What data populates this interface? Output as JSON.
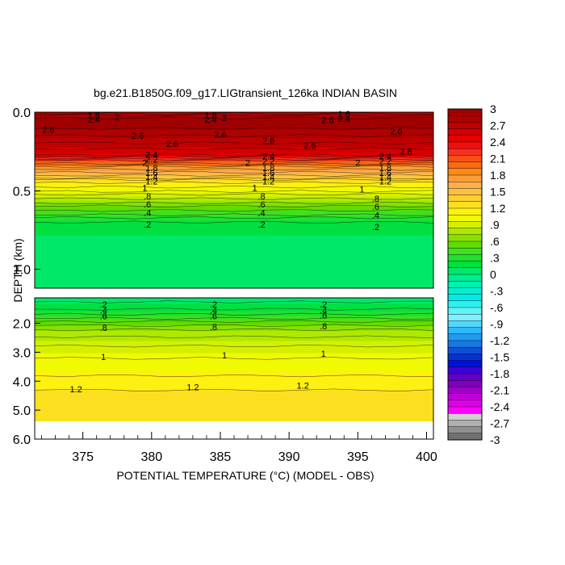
{
  "chart_data": {
    "type": "heatmap",
    "title": "bg.e21.B1850G.f09_g17.LIGtransient_126ka INDIAN BASIN",
    "xlabel": "POTENTIAL TEMPERATURE (°C) (MODEL - OBS)",
    "ylabel": "DEPTH (km)",
    "x_ticks": [
      "375",
      "380",
      "385",
      "390",
      "395",
      "400"
    ],
    "xlim": [
      371.5,
      400.5
    ],
    "upper_panel": {
      "ylim": [
        0.0,
        1.12
      ],
      "y_ticks": [
        "0.0",
        "0.5",
        "1.0"
      ],
      "profile": [
        {
          "depth": 0.0,
          "value": 2.6
        },
        {
          "depth": 0.02,
          "value": 2.8
        },
        {
          "depth": 0.05,
          "value": 3.0
        },
        {
          "depth": 0.1,
          "value": 2.9
        },
        {
          "depth": 0.2,
          "value": 2.7
        },
        {
          "depth": 0.27,
          "value": 2.5
        },
        {
          "depth": 0.3,
          "value": 2.2
        },
        {
          "depth": 0.35,
          "value": 1.8
        },
        {
          "depth": 0.4,
          "value": 1.5
        },
        {
          "depth": 0.45,
          "value": 1.2
        },
        {
          "depth": 0.5,
          "value": 1.0
        },
        {
          "depth": 0.55,
          "value": 0.8
        },
        {
          "depth": 0.6,
          "value": 0.6
        },
        {
          "depth": 0.65,
          "value": 0.4
        },
        {
          "depth": 0.7,
          "value": 0.2
        },
        {
          "depth": 0.8,
          "value": 0.1
        },
        {
          "depth": 1.12,
          "value": 0.1
        }
      ],
      "contour_labels": [
        {
          "text": "1.8",
          "x": 375.8,
          "depth": 0.02
        },
        {
          "text": "2.4",
          "x": 375.8,
          "depth": 0.045
        },
        {
          "text": "2",
          "x": 377.5,
          "depth": 0.03
        },
        {
          "text": "1.8",
          "x": 384.3,
          "depth": 0.02
        },
        {
          "text": "2.4",
          "x": 384.3,
          "depth": 0.045
        },
        {
          "text": "2",
          "x": 385.3,
          "depth": 0.035
        },
        {
          "text": "1.6",
          "x": 394.0,
          "depth": 0.01
        },
        {
          "text": "2.4",
          "x": 394.0,
          "depth": 0.04
        },
        {
          "text": "2.6",
          "x": 392.8,
          "depth": 0.05
        },
        {
          "text": "2.6",
          "x": 372.5,
          "depth": 0.11
        },
        {
          "text": "2.6",
          "x": 379.0,
          "depth": 0.15
        },
        {
          "text": "2.6",
          "x": 381.5,
          "depth": 0.2
        },
        {
          "text": "2.6",
          "x": 385.0,
          "depth": 0.14
        },
        {
          "text": "2.6",
          "x": 388.5,
          "depth": 0.18
        },
        {
          "text": "2.6",
          "x": 391.5,
          "depth": 0.21
        },
        {
          "text": "2.6",
          "x": 397.8,
          "depth": 0.12
        },
        {
          "text": "2.6",
          "x": 398.5,
          "depth": 0.25
        },
        {
          "text": "2.4",
          "x": 380.0,
          "depth": 0.27
        },
        {
          "text": "2.2",
          "x": 380.0,
          "depth": 0.3
        },
        {
          "text": "2",
          "x": 379.5,
          "depth": 0.32
        },
        {
          "text": "1.8",
          "x": 380.0,
          "depth": 0.355
        },
        {
          "text": "1.6",
          "x": 380.0,
          "depth": 0.385
        },
        {
          "text": "1.4",
          "x": 380.0,
          "depth": 0.41
        },
        {
          "text": "1.2",
          "x": 380.0,
          "depth": 0.44
        },
        {
          "text": "2.4",
          "x": 388.5,
          "depth": 0.28
        },
        {
          "text": "2.2",
          "x": 388.5,
          "depth": 0.31
        },
        {
          "text": "2",
          "x": 387.0,
          "depth": 0.32
        },
        {
          "text": "1.8",
          "x": 388.5,
          "depth": 0.355
        },
        {
          "text": "1.6",
          "x": 388.5,
          "depth": 0.385
        },
        {
          "text": "1.4",
          "x": 388.5,
          "depth": 0.41
        },
        {
          "text": "1.2",
          "x": 388.5,
          "depth": 0.44
        },
        {
          "text": "2.4",
          "x": 397.0,
          "depth": 0.28
        },
        {
          "text": "2.2",
          "x": 397.0,
          "depth": 0.31
        },
        {
          "text": "2",
          "x": 395.0,
          "depth": 0.32
        },
        {
          "text": "1.8",
          "x": 397.0,
          "depth": 0.355
        },
        {
          "text": "1.6",
          "x": 397.0,
          "depth": 0.385
        },
        {
          "text": "1.4",
          "x": 397.0,
          "depth": 0.41
        },
        {
          "text": "1.2",
          "x": 397.0,
          "depth": 0.44
        },
        {
          "text": "1",
          "x": 379.5,
          "depth": 0.48
        },
        {
          "text": "1",
          "x": 387.5,
          "depth": 0.48
        },
        {
          "text": "1",
          "x": 395.3,
          "depth": 0.49
        },
        {
          "text": ".8",
          "x": 379.7,
          "depth": 0.535
        },
        {
          "text": ".6",
          "x": 379.7,
          "depth": 0.585
        },
        {
          "text": ".4",
          "x": 379.7,
          "depth": 0.64
        },
        {
          "text": ".2",
          "x": 379.7,
          "depth": 0.715
        },
        {
          "text": ".8",
          "x": 388.0,
          "depth": 0.535
        },
        {
          "text": ".6",
          "x": 388.0,
          "depth": 0.585
        },
        {
          "text": ".4",
          "x": 388.0,
          "depth": 0.64
        },
        {
          "text": ".2",
          "x": 388.0,
          "depth": 0.715
        },
        {
          "text": ".8",
          "x": 396.3,
          "depth": 0.55
        },
        {
          "text": ".6",
          "x": 396.3,
          "depth": 0.6
        },
        {
          "text": ".4",
          "x": 396.3,
          "depth": 0.655
        },
        {
          "text": ".2",
          "x": 396.3,
          "depth": 0.73
        }
      ]
    },
    "lower_panel": {
      "ylim": [
        1.12,
        6.0
      ],
      "y_ticks": [
        "2.0",
        "3.0",
        "4.0",
        "5.0",
        "6.0"
      ],
      "data_bottom_depth": 5.37,
      "profile": [
        {
          "depth": 1.12,
          "value": 0.05
        },
        {
          "depth": 1.4,
          "value": 0.15
        },
        {
          "depth": 1.7,
          "value": 0.3
        },
        {
          "depth": 2.0,
          "value": 0.55
        },
        {
          "depth": 2.3,
          "value": 0.75
        },
        {
          "depth": 2.8,
          "value": 0.9
        },
        {
          "depth": 3.2,
          "value": 1.0
        },
        {
          "depth": 3.8,
          "value": 1.1
        },
        {
          "depth": 4.3,
          "value": 1.2
        },
        {
          "depth": 5.37,
          "value": 1.3
        }
      ],
      "contour_labels": [
        {
          "text": ".2",
          "x": 376.5,
          "depth": 1.35
        },
        {
          "text": ".4",
          "x": 376.5,
          "depth": 1.55
        },
        {
          "text": ".6",
          "x": 376.5,
          "depth": 1.75
        },
        {
          "text": ".8",
          "x": 376.5,
          "depth": 2.15
        },
        {
          "text": "1",
          "x": 376.5,
          "depth": 3.15
        },
        {
          "text": "1.2",
          "x": 374.5,
          "depth": 4.27
        },
        {
          "text": ".2",
          "x": 384.5,
          "depth": 1.35
        },
        {
          "text": ".4",
          "x": 384.5,
          "depth": 1.55
        },
        {
          "text": ".6",
          "x": 384.5,
          "depth": 1.75
        },
        {
          "text": ".8",
          "x": 384.5,
          "depth": 2.12
        },
        {
          "text": "1",
          "x": 385.3,
          "depth": 3.1
        },
        {
          "text": "1.2",
          "x": 383.0,
          "depth": 4.2
        },
        {
          "text": ".2",
          "x": 392.5,
          "depth": 1.35
        },
        {
          "text": ".4",
          "x": 392.5,
          "depth": 1.55
        },
        {
          "text": ".6",
          "x": 392.5,
          "depth": 1.72
        },
        {
          "text": ".8",
          "x": 392.5,
          "depth": 2.1
        },
        {
          "text": "1",
          "x": 392.5,
          "depth": 3.05
        },
        {
          "text": "1.2",
          "x": 391.0,
          "depth": 4.15
        }
      ]
    },
    "colorbar": {
      "labels": [
        "3",
        "2.7",
        "2.4",
        "2.1",
        "1.8",
        "1.5",
        "1.2",
        ".9",
        ".6",
        ".3",
        "0",
        "-.3",
        "-.6",
        "-.9",
        "-1.2",
        "-1.5",
        "-1.8",
        "-2.1",
        "-2.4",
        "-2.7",
        "-3"
      ],
      "colors": [
        "#a00000",
        "#b00000",
        "#c00000",
        "#d40000",
        "#e60000",
        "#f01010",
        "#f73020",
        "#f85018",
        "#fa6a10",
        "#fc8a18",
        "#fd9e35",
        "#fcb050",
        "#fcc040",
        "#fcd030",
        "#fce020",
        "#fef010",
        "#f0fa00",
        "#d4f000",
        "#b0e800",
        "#88e000",
        "#60dc00",
        "#40e020",
        "#20e030",
        "#00e040",
        "#00e868",
        "#00ec90",
        "#00f0b0",
        "#00f0d0",
        "#00ecec",
        "#30f0f0",
        "#60f4f4",
        "#80f0ff",
        "#50d8ff",
        "#30b8ff",
        "#2098f0",
        "#1878e0",
        "#1050d8",
        "#0830d0",
        "#0010e0",
        "#4000d8",
        "#6000c8",
        "#8000c0",
        "#a000c8",
        "#c000d8",
        "#e000e8",
        "#ff00ff",
        "#d0d0d0",
        "#b0b0b0",
        "#909090",
        "#707070"
      ],
      "range": [
        -3,
        3
      ]
    }
  }
}
